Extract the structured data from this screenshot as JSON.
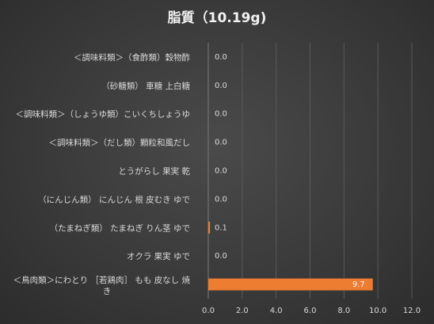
{
  "chart_data": {
    "type": "bar",
    "orientation": "horizontal",
    "title": "脂質（10.19g)",
    "categories": [
      "＜調味料類＞（食酢類）穀物酢",
      "（砂糖類） 車糖 上白糖",
      "＜調味料類＞（しょうゆ類）こいくちしょうゆ",
      "＜調味料類＞（だし類）顆粒和風だし",
      "とうがらし 果実 乾",
      "（にんじん類） にんじん 根 皮むき ゆで",
      "（たまねぎ類） たまねぎ りん茎 ゆで",
      "オクラ 果実 ゆで",
      "＜鳥肉類＞にわとり ［若鶏肉］ もも 皮なし 焼き"
    ],
    "values": [
      0.0,
      0.0,
      0.0,
      0.0,
      0.0,
      0.0,
      0.1,
      0.0,
      9.7
    ],
    "data_labels": [
      "0.0",
      "0.0",
      "0.0",
      "0.0",
      "0.0",
      "0.0",
      "0.1",
      "0.0",
      "9.7"
    ],
    "x_ticks": [
      "0.0",
      "2.0",
      "4.0",
      "6.0",
      "8.0",
      "10.0",
      "12.0"
    ],
    "xlim": [
      0,
      12
    ],
    "grid": true,
    "bar_color": "#ed7d31",
    "legend": "none"
  }
}
